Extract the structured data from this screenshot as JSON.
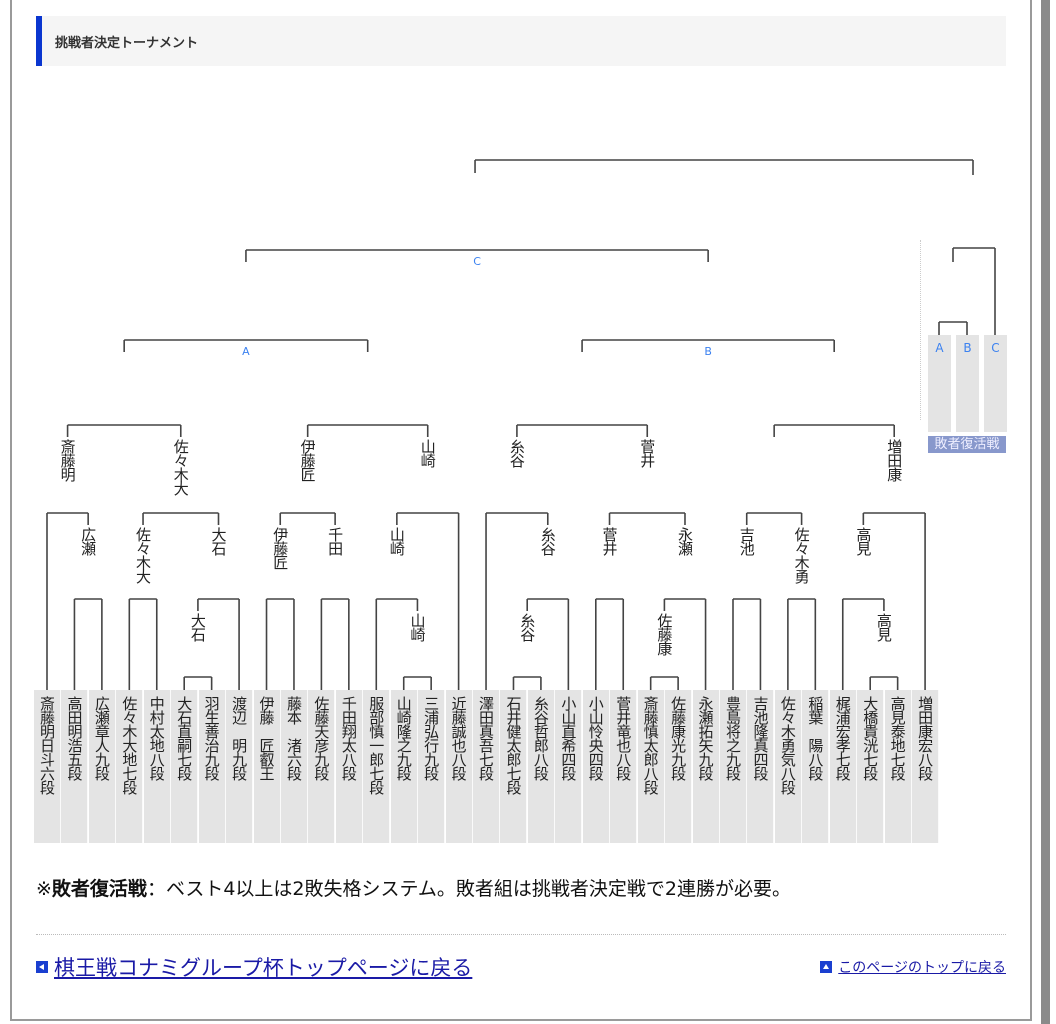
{
  "header": {
    "title": "挑戦者決定トーナメント"
  },
  "bracket": {
    "players": [
      "斎藤明日斗六段",
      "高田明浩五段",
      "広瀬章人九段",
      "佐々木大地七段",
      "中村太地八段",
      "大石直嗣七段",
      "羽生善治九段",
      "渡辺　明九段",
      "伊藤　匠叡王",
      "藤本　渚六段",
      "佐藤天彦九段",
      "千田翔太八段",
      "服部慎一郎七段",
      "山崎隆之九段",
      "三浦弘行九段",
      "近藤誠也八段",
      "澤田真吾七段",
      "石井健太郎七段",
      "糸谷哲郎八段",
      "小山直希四段",
      "小山怜央四段",
      "菅井竜也八段",
      "斎藤慎太郎八段",
      "佐藤康光九段",
      "永瀬拓矢九段",
      "豊島将之九段",
      "吉池隆真四段",
      "佐々木勇気八段",
      "稲葉　陽八段",
      "梶浦宏孝七段",
      "大橋貴洸七段",
      "高見泰地七段",
      "増田康宏八段"
    ],
    "winners": [
      "広瀬",
      "斎藤明",
      "佐々木大",
      "大石",
      "大石",
      "佐々木大",
      "伊藤匠",
      "千田",
      "伊藤匠",
      "山崎",
      "山崎",
      "山崎",
      "糸谷",
      "糸谷",
      "糸谷",
      "菅井",
      "佐藤康",
      "永瀬",
      "菅井",
      "吉池",
      "佐々木勇",
      "高見",
      "高見",
      "増田康"
    ],
    "round_labels": {
      "a": "A",
      "b": "B",
      "c": "C"
    }
  },
  "losers_bracket": {
    "slots": [
      "A",
      "B",
      "C"
    ],
    "caption": "敗者復活戦"
  },
  "note": {
    "prefix": "※",
    "term": "敗者復活戦",
    "text": "：ベスト4以上は2敗失格システム。敗者組は挑戦者決定戦で2連勝が必要。"
  },
  "footer": {
    "back_link": "棋王戦コナミグループ杯トップページに戻る",
    "top_link": "このページのトップに戻る"
  },
  "colors": {
    "accent": "#0a36d0",
    "link": "#1a1aa6",
    "round_label": "#3c82f0"
  }
}
